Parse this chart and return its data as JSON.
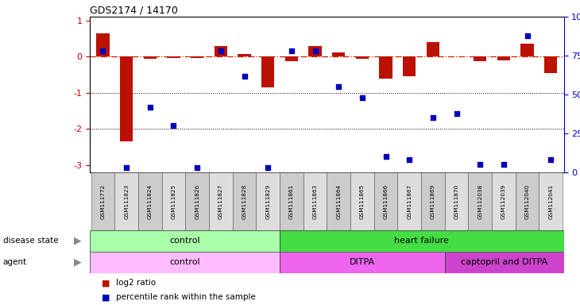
{
  "title": "GDS2174 / 14170",
  "samples": [
    "GSM111772",
    "GSM111823",
    "GSM111824",
    "GSM111825",
    "GSM111826",
    "GSM111827",
    "GSM111828",
    "GSM111829",
    "GSM111861",
    "GSM111863",
    "GSM111864",
    "GSM111865",
    "GSM111866",
    "GSM111867",
    "GSM111869",
    "GSM111870",
    "GSM112038",
    "GSM112039",
    "GSM112040",
    "GSM112041"
  ],
  "log2_ratio": [
    0.65,
    -2.35,
    -0.07,
    -0.05,
    -0.05,
    0.28,
    0.07,
    -0.85,
    -0.12,
    0.28,
    0.12,
    -0.07,
    -0.6,
    -0.55,
    0.4,
    0.0,
    -0.12,
    -0.1,
    0.35,
    -0.45
  ],
  "pct_rank": [
    78,
    3,
    42,
    30,
    3,
    78,
    62,
    3,
    78,
    78,
    55,
    48,
    10,
    8,
    35,
    38,
    5,
    5,
    88,
    8
  ],
  "disease_state_groups": [
    {
      "label": "control",
      "start": 0,
      "end": 7,
      "color": "#aaffaa"
    },
    {
      "label": "heart failure",
      "start": 8,
      "end": 19,
      "color": "#44dd44"
    }
  ],
  "agent_groups": [
    {
      "label": "control",
      "start": 0,
      "end": 7,
      "color": "#ffbbff"
    },
    {
      "label": "DITPA",
      "start": 8,
      "end": 14,
      "color": "#ee66ee"
    },
    {
      "label": "captopril and DITPA",
      "start": 15,
      "end": 19,
      "color": "#cc44cc"
    }
  ],
  "ylim_left": [
    -3.2,
    1.1
  ],
  "ylim_right": [
    0,
    100
  ],
  "bar_color": "#bb1100",
  "dot_color": "#0000bb",
  "ref_line_color": "#cc2200",
  "background_color": "#ffffff",
  "left_ytick_color": "#cc0000",
  "right_ytick_color": "#0000cc",
  "legend_items": [
    {
      "label": "log2 ratio",
      "color": "#bb1100"
    },
    {
      "label": "percentile rank within the sample",
      "color": "#0000bb"
    }
  ]
}
